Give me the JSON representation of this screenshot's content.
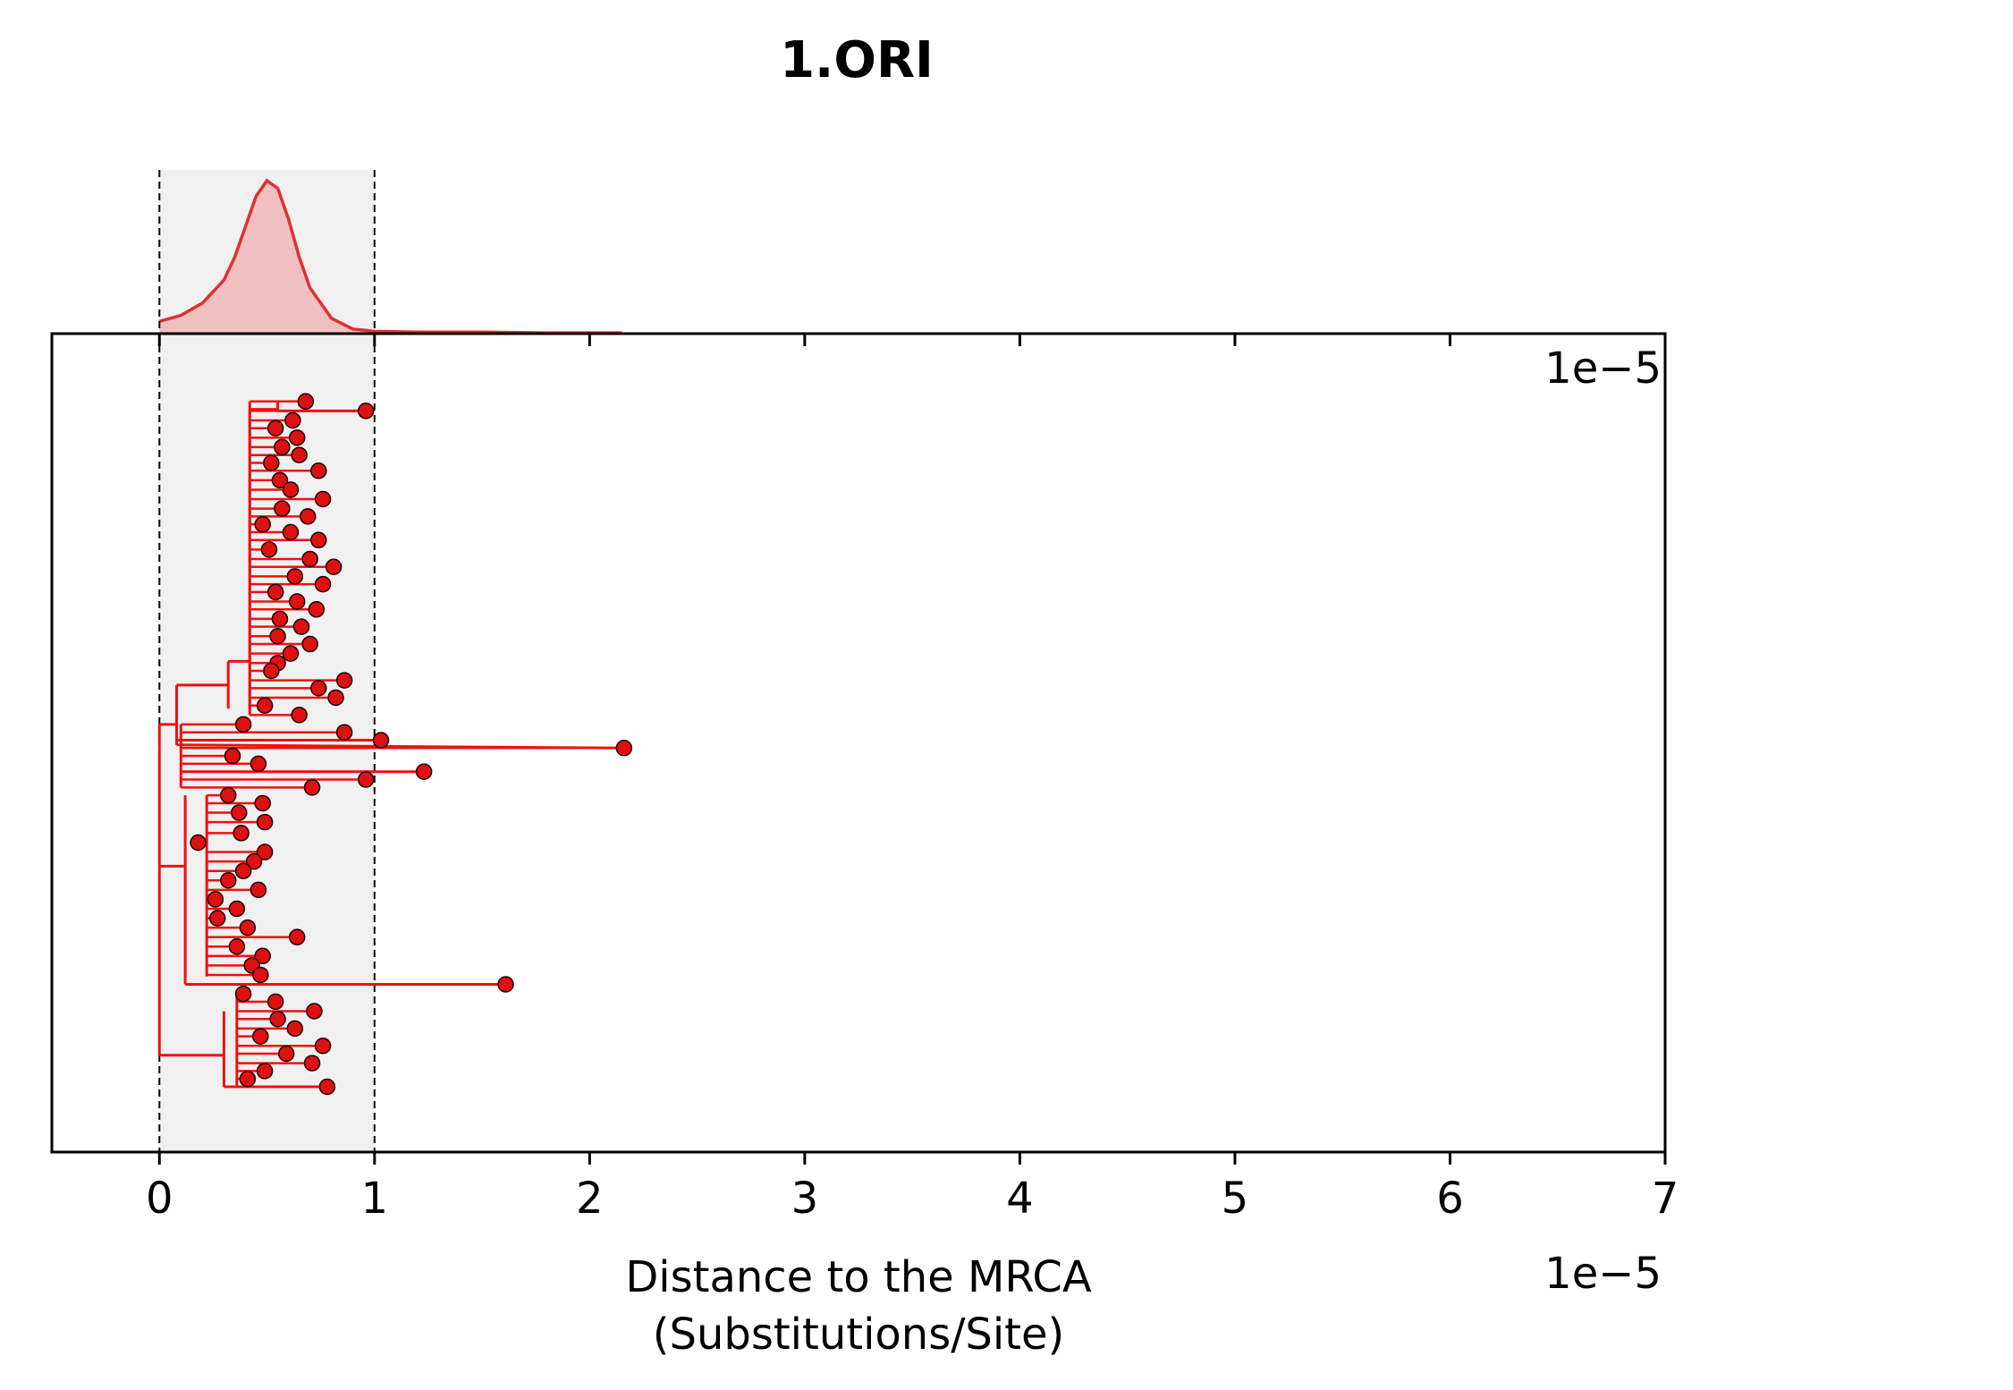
{
  "chart_data": {
    "type": "tree",
    "title": "1.ORI",
    "xlabel_line1": "Distance to the MRCA",
    "xlabel_line2": "(Substitutions/Site)",
    "x_scale_label": "1e−5",
    "top_scale_label": "1e−5",
    "x_multiplier": 1e-05,
    "xlim": [
      -0.5,
      7
    ],
    "x_ticks": [
      0,
      1,
      2,
      3,
      4,
      5,
      6,
      7
    ],
    "x_tick_labels": [
      "0",
      "1",
      "2",
      "3",
      "4",
      "5",
      "6",
      "7"
    ],
    "shaded_interval": [
      0,
      1
    ],
    "colors": {
      "branch": "#ee1111",
      "tip_fill": "#dd1111",
      "tip_edge": "#220000",
      "density_line": "#e03030",
      "density_fill": "#f0c0c0",
      "shade": "#f0f0f0"
    },
    "density": {
      "x": [
        0,
        0.1,
        0.2,
        0.3,
        0.35,
        0.4,
        0.45,
        0.5,
        0.55,
        0.6,
        0.65,
        0.7,
        0.8,
        0.9,
        1.0,
        1.2,
        1.5,
        1.8,
        2.0,
        2.15
      ],
      "y": [
        0.08,
        0.12,
        0.2,
        0.35,
        0.5,
        0.7,
        0.9,
        1.0,
        0.95,
        0.75,
        0.5,
        0.3,
        0.1,
        0.03,
        0.015,
        0.01,
        0.01,
        0.005,
        0.005,
        0.005
      ]
    },
    "tips": [
      {
        "x": 0.68,
        "y": 0.5
      },
      {
        "x": 0.96,
        "y": 1.1
      },
      {
        "x": 0.62,
        "y": 1.7
      },
      {
        "x": 0.54,
        "y": 2.2
      },
      {
        "x": 0.64,
        "y": 2.8
      },
      {
        "x": 0.57,
        "y": 3.4
      },
      {
        "x": 0.65,
        "y": 3.9
      },
      {
        "x": 0.52,
        "y": 4.4
      },
      {
        "x": 0.74,
        "y": 4.9
      },
      {
        "x": 0.56,
        "y": 5.5
      },
      {
        "x": 0.61,
        "y": 6.1
      },
      {
        "x": 0.76,
        "y": 6.7
      },
      {
        "x": 0.57,
        "y": 7.3
      },
      {
        "x": 0.69,
        "y": 7.8
      },
      {
        "x": 0.48,
        "y": 8.3
      },
      {
        "x": 0.61,
        "y": 8.8
      },
      {
        "x": 0.74,
        "y": 9.3
      },
      {
        "x": 0.51,
        "y": 9.9
      },
      {
        "x": 0.7,
        "y": 10.5
      },
      {
        "x": 0.81,
        "y": 11.0
      },
      {
        "x": 0.63,
        "y": 11.6
      },
      {
        "x": 0.76,
        "y": 12.1
      },
      {
        "x": 0.54,
        "y": 12.6
      },
      {
        "x": 0.64,
        "y": 13.2
      },
      {
        "x": 0.73,
        "y": 13.7
      },
      {
        "x": 0.56,
        "y": 14.3
      },
      {
        "x": 0.66,
        "y": 14.8
      },
      {
        "x": 0.55,
        "y": 15.4
      },
      {
        "x": 0.7,
        "y": 15.9
      },
      {
        "x": 0.61,
        "y": 16.5
      },
      {
        "x": 0.55,
        "y": 17.1
      },
      {
        "x": 0.52,
        "y": 17.6
      },
      {
        "x": 0.86,
        "y": 18.2
      },
      {
        "x": 0.74,
        "y": 18.7
      },
      {
        "x": 0.82,
        "y": 19.3
      },
      {
        "x": 0.49,
        "y": 19.8
      },
      {
        "x": 0.65,
        "y": 20.4
      },
      {
        "x": 0.39,
        "y": 21.0
      },
      {
        "x": 0.86,
        "y": 21.5
      },
      {
        "x": 1.03,
        "y": 22.0
      },
      {
        "x": 2.16,
        "y": 22.5
      },
      {
        "x": 0.34,
        "y": 23.0
      },
      {
        "x": 0.46,
        "y": 23.5
      },
      {
        "x": 1.23,
        "y": 24.0
      },
      {
        "x": 0.96,
        "y": 24.5
      },
      {
        "x": 0.71,
        "y": 25.0
      },
      {
        "x": 0.32,
        "y": 25.5
      },
      {
        "x": 0.48,
        "y": 26.0
      },
      {
        "x": 0.37,
        "y": 26.6
      },
      {
        "x": 0.49,
        "y": 27.2
      },
      {
        "x": 0.38,
        "y": 27.9
      },
      {
        "x": 0.18,
        "y": 28.5
      },
      {
        "x": 0.49,
        "y": 29.1
      },
      {
        "x": 0.44,
        "y": 29.7
      },
      {
        "x": 0.39,
        "y": 30.3
      },
      {
        "x": 0.32,
        "y": 30.9
      },
      {
        "x": 0.46,
        "y": 31.5
      },
      {
        "x": 0.26,
        "y": 32.1
      },
      {
        "x": 0.36,
        "y": 32.7
      },
      {
        "x": 0.27,
        "y": 33.3
      },
      {
        "x": 0.41,
        "y": 33.9
      },
      {
        "x": 0.64,
        "y": 34.5
      },
      {
        "x": 0.36,
        "y": 35.1
      },
      {
        "x": 0.48,
        "y": 35.7
      },
      {
        "x": 0.43,
        "y": 36.3
      },
      {
        "x": 0.47,
        "y": 36.9
      },
      {
        "x": 1.61,
        "y": 37.5
      },
      {
        "x": 0.39,
        "y": 38.1
      },
      {
        "x": 0.54,
        "y": 38.6
      },
      {
        "x": 0.72,
        "y": 39.2
      },
      {
        "x": 0.55,
        "y": 39.7
      },
      {
        "x": 0.63,
        "y": 40.3
      },
      {
        "x": 0.47,
        "y": 40.8
      },
      {
        "x": 0.76,
        "y": 41.4
      },
      {
        "x": 0.59,
        "y": 41.9
      },
      {
        "x": 0.71,
        "y": 42.5
      },
      {
        "x": 0.49,
        "y": 43.0
      },
      {
        "x": 0.41,
        "y": 43.5
      },
      {
        "x": 0.78,
        "y": 44.0
      }
    ],
    "branches": [
      {
        "x1": 0.0,
        "y1": 22.5,
        "x2": 0.0,
        "y2": 42.0
      },
      {
        "x1": 0.0,
        "y1": 22.5,
        "x2": 0.0,
        "y2": 21.0
      },
      {
        "x1": 0.0,
        "y1": 21.0,
        "x2": 0.08,
        "y2": 21.0
      },
      {
        "x1": 0.08,
        "y1": 18.5,
        "x2": 0.08,
        "y2": 22.3
      },
      {
        "x1": 0.08,
        "y1": 18.5,
        "x2": 0.32,
        "y2": 18.5
      },
      {
        "x1": 0.32,
        "y1": 17.0,
        "x2": 0.32,
        "y2": 20.0
      },
      {
        "x1": 0.32,
        "y1": 17.0,
        "x2": 0.42,
        "y2": 17.0
      },
      {
        "x1": 0.42,
        "y1": 1.0,
        "x2": 0.42,
        "y2": 20.0
      },
      {
        "x1": 0.42,
        "y1": 1.0,
        "x2": 0.55,
        "y2": 1.0
      },
      {
        "x1": 0.55,
        "y1": 0.5,
        "x2": 0.55,
        "y2": 1.1
      },
      {
        "x1": 0.55,
        "y1": 1.1,
        "x2": 0.96,
        "y2": 1.1
      },
      {
        "x1": 0.08,
        "y1": 22.3,
        "x2": 2.16,
        "y2": 22.5
      },
      {
        "x1": 0.08,
        "y1": 22.0,
        "x2": 1.03,
        "y2": 22.0
      },
      {
        "x1": 0.1,
        "y1": 24.0,
        "x2": 1.23,
        "y2": 24.0
      },
      {
        "x1": 0.0,
        "y1": 30.0,
        "x2": 0.12,
        "y2": 30.0
      },
      {
        "x1": 0.12,
        "y1": 25.5,
        "x2": 0.12,
        "y2": 37.5
      },
      {
        "x1": 0.12,
        "y1": 37.5,
        "x2": 1.61,
        "y2": 37.5
      },
      {
        "x1": 0.0,
        "y1": 42.0,
        "x2": 0.3,
        "y2": 42.0
      },
      {
        "x1": 0.3,
        "y1": 39.2,
        "x2": 0.3,
        "y2": 44.0
      },
      {
        "x1": 0.3,
        "y1": 44.0,
        "x2": 0.78,
        "y2": 44.0
      }
    ]
  }
}
